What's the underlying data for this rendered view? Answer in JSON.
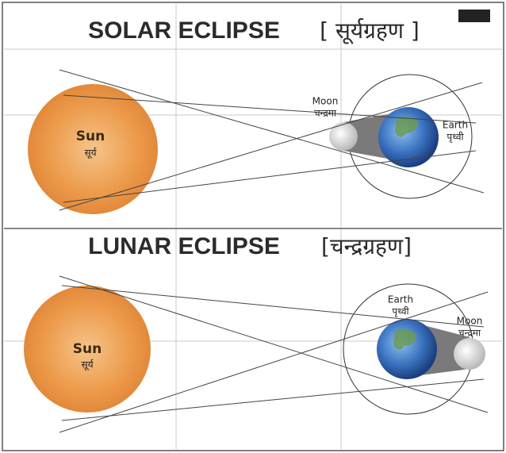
{
  "panels": [
    {
      "title": "SOLAR ECLIPSE",
      "title_hindi": "[ सूर्यग्रहण ]",
      "sun": {
        "label": "Sun",
        "label_hindi": "सूर्य"
      },
      "moon": {
        "label": "Moon",
        "label_hindi": "चन्द्रमा"
      },
      "earth": {
        "label": "Earth",
        "label_hindi": "पृथ्वी"
      }
    },
    {
      "title": "LUNAR ECLIPSE",
      "title_hindi": "[चन्द्रग्रहण]",
      "sun": {
        "label": "Sun",
        "label_hindi": "सूर्य"
      },
      "moon": {
        "label": "Moon",
        "label_hindi": "चन्द्रमा"
      },
      "earth": {
        "label": "Earth",
        "label_hindi": "पृथ्वी"
      }
    }
  ]
}
